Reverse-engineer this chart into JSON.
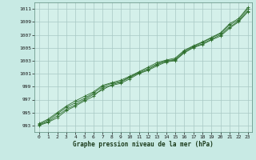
{
  "title": "Graphe pression niveau de la mer (hPa)",
  "bg_color": "#c8eae4",
  "plot_bg_color": "#d4f0ea",
  "grid_color": "#a8c8c4",
  "line_color": "#2d6e2d",
  "marker_color": "#2d6e2d",
  "xlim": [
    -0.5,
    23.5
  ],
  "ylim": [
    992.0,
    1012.0
  ],
  "yticks": [
    993,
    995,
    997,
    999,
    1001,
    1003,
    1005,
    1007,
    1009,
    1011
  ],
  "xticks": [
    0,
    1,
    2,
    3,
    4,
    5,
    6,
    7,
    8,
    9,
    10,
    11,
    12,
    13,
    14,
    15,
    16,
    17,
    18,
    19,
    20,
    21,
    22,
    23
  ],
  "series": [
    [
      993.2,
      993.8,
      994.8,
      995.8,
      996.5,
      997.2,
      998.0,
      999.0,
      999.5,
      999.8,
      1000.5,
      1001.2,
      1001.8,
      1002.5,
      1003.0,
      1003.2,
      1004.5,
      1005.2,
      1005.8,
      1006.5,
      1007.2,
      1008.5,
      1009.3,
      1011.0
    ],
    [
      993.0,
      993.5,
      994.2,
      995.3,
      996.0,
      996.8,
      997.5,
      998.8,
      999.2,
      999.5,
      1000.2,
      1001.0,
      1001.5,
      1002.2,
      1002.8,
      1003.0,
      1004.2,
      1005.0,
      1005.5,
      1006.2,
      1006.8,
      1008.0,
      1009.0,
      1010.5
    ],
    [
      993.1,
      993.6,
      994.5,
      995.5,
      996.2,
      997.0,
      997.8,
      998.5,
      999.3,
      999.7,
      1000.4,
      1001.1,
      1001.6,
      1002.4,
      1002.9,
      1003.1,
      1004.3,
      1005.1,
      1005.6,
      1006.3,
      1007.0,
      1008.2,
      1009.1,
      1010.7
    ],
    [
      993.3,
      994.0,
      995.0,
      996.0,
      996.8,
      997.5,
      998.2,
      999.2,
      999.6,
      1000.0,
      1000.6,
      1001.3,
      1002.0,
      1002.7,
      1003.1,
      1003.4,
      1004.6,
      1005.3,
      1005.9,
      1006.6,
      1007.3,
      1008.7,
      1009.5,
      1011.2
    ]
  ]
}
